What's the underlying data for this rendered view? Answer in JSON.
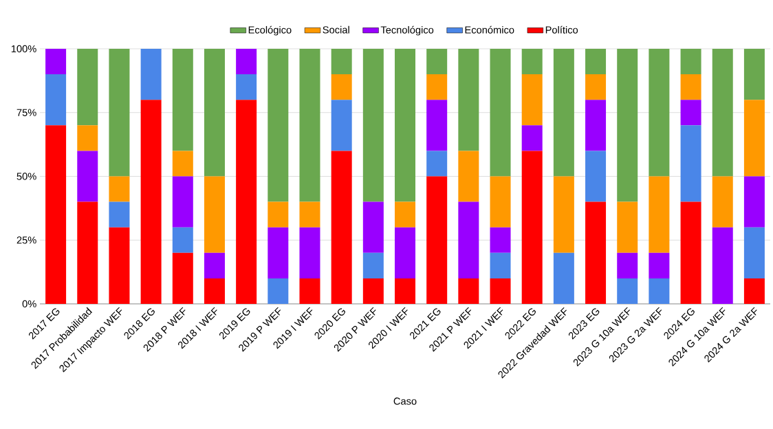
{
  "chart_data": {
    "type": "bar",
    "stacked": true,
    "xlabel": "Caso",
    "categories": [
      "2017 EG",
      "2017 Probabilidad",
      "2017 Impacto WEF",
      "2018 EG",
      "2018 P WEF",
      "2018 I WEF",
      "2019 EG",
      "2019 P WEF",
      "2019 I WEF",
      "2020 EG",
      "2020 P WEF",
      "2020 I WEF",
      "2021 EG",
      "2021 P WEF",
      "2021 I WEF",
      "2022 EG",
      "2022 Gravedad WEF",
      "2023 EG",
      "2023 G 10a WEF",
      "2023 G 2a WEF",
      "2024 EG",
      "2024 G 10a WEF",
      "2024 G 2a WEF"
    ],
    "series": [
      {
        "name": "Político",
        "color": "#ff0000",
        "values": [
          70,
          40,
          30,
          80,
          20,
          10,
          80,
          0,
          10,
          60,
          10,
          10,
          50,
          10,
          10,
          60,
          0,
          40,
          0,
          0,
          40,
          0,
          10
        ]
      },
      {
        "name": "Económico",
        "color": "#4a86e8",
        "values": [
          20,
          0,
          10,
          20,
          10,
          0,
          10,
          10,
          0,
          20,
          10,
          0,
          10,
          0,
          10,
          0,
          20,
          20,
          10,
          10,
          30,
          0,
          20
        ]
      },
      {
        "name": "Tecnológico",
        "color": "#9900ff",
        "values": [
          10,
          20,
          0,
          0,
          20,
          10,
          10,
          20,
          20,
          0,
          20,
          20,
          20,
          30,
          10,
          10,
          0,
          20,
          10,
          10,
          10,
          30,
          20
        ]
      },
      {
        "name": "Social",
        "color": "#ff9900",
        "values": [
          0,
          10,
          10,
          0,
          10,
          30,
          0,
          10,
          10,
          10,
          0,
          10,
          10,
          20,
          20,
          20,
          30,
          10,
          20,
          30,
          10,
          20,
          30
        ]
      },
      {
        "name": "Ecológico",
        "color": "#6aa84f",
        "values": [
          0,
          30,
          50,
          0,
          40,
          50,
          0,
          60,
          60,
          10,
          60,
          60,
          10,
          40,
          50,
          10,
          50,
          10,
          60,
          50,
          10,
          50,
          20
        ]
      }
    ],
    "ylim": [
      0,
      100
    ],
    "yticks": [
      {
        "value": 0,
        "label": "0%"
      },
      {
        "value": 25,
        "label": "25%"
      },
      {
        "value": 50,
        "label": "50%"
      },
      {
        "value": 75,
        "label": "75%"
      },
      {
        "value": 100,
        "label": "100%"
      }
    ],
    "grid": "y",
    "legend": "top"
  }
}
